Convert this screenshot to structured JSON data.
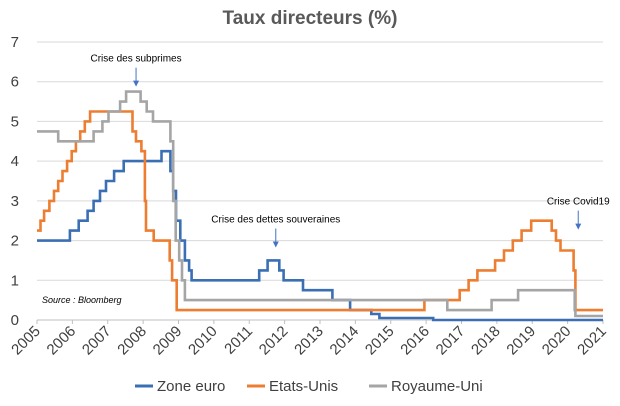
{
  "chart_data": {
    "type": "line",
    "title": "Taux directeurs (%)",
    "source": "Source : Bloomberg",
    "xlabel": "",
    "ylabel": "",
    "xlim": [
      2005,
      2021
    ],
    "ylim": [
      0,
      7
    ],
    "x_ticks": [
      "2005",
      "2006",
      "2007",
      "2008",
      "2009",
      "2010",
      "2011",
      "2012",
      "2013",
      "2014",
      "2015",
      "2016",
      "2017",
      "2018",
      "2019",
      "2020",
      "2021"
    ],
    "y_ticks": [
      "0",
      "1",
      "2",
      "3",
      "4",
      "5",
      "6",
      "7"
    ],
    "grid": true,
    "legend_position": "bottom",
    "annotations": [
      {
        "text": "Crise des subprimes",
        "x": 2007.8,
        "y": 5.8
      },
      {
        "text": "Crise des dettes souveraines",
        "x": 2011.75,
        "y": 1.75
      },
      {
        "text": "Crise Covid19",
        "x": 2020.3,
        "y": 2.2
      }
    ],
    "series": [
      {
        "name": "Zone euro",
        "color": "#3B6FB4",
        "step": true,
        "points": [
          [
            2005.0,
            2.0
          ],
          [
            2005.93,
            2.25
          ],
          [
            2006.18,
            2.5
          ],
          [
            2006.43,
            2.75
          ],
          [
            2006.6,
            3.0
          ],
          [
            2006.78,
            3.25
          ],
          [
            2006.95,
            3.5
          ],
          [
            2007.18,
            3.75
          ],
          [
            2007.45,
            4.0
          ],
          [
            2008.52,
            4.25
          ],
          [
            2008.77,
            3.75
          ],
          [
            2008.85,
            3.25
          ],
          [
            2008.93,
            2.5
          ],
          [
            2009.05,
            2.0
          ],
          [
            2009.18,
            1.5
          ],
          [
            2009.3,
            1.25
          ],
          [
            2009.37,
            1.0
          ],
          [
            2011.28,
            1.25
          ],
          [
            2011.52,
            1.5
          ],
          [
            2011.85,
            1.25
          ],
          [
            2011.97,
            1.0
          ],
          [
            2012.52,
            0.75
          ],
          [
            2013.35,
            0.5
          ],
          [
            2013.85,
            0.25
          ],
          [
            2014.45,
            0.15
          ],
          [
            2014.68,
            0.05
          ],
          [
            2016.2,
            0.0
          ],
          [
            2021.0,
            0.0
          ]
        ]
      },
      {
        "name": "Etats-Unis",
        "color": "#ED7D31",
        "step": true,
        "points": [
          [
            2005.0,
            2.25
          ],
          [
            2005.1,
            2.5
          ],
          [
            2005.2,
            2.75
          ],
          [
            2005.35,
            3.0
          ],
          [
            2005.48,
            3.25
          ],
          [
            2005.6,
            3.5
          ],
          [
            2005.72,
            3.75
          ],
          [
            2005.85,
            4.0
          ],
          [
            2005.98,
            4.25
          ],
          [
            2006.1,
            4.5
          ],
          [
            2006.22,
            4.75
          ],
          [
            2006.35,
            5.0
          ],
          [
            2006.5,
            5.25
          ],
          [
            2007.7,
            4.75
          ],
          [
            2007.8,
            4.5
          ],
          [
            2007.95,
            4.25
          ],
          [
            2008.05,
            3.0
          ],
          [
            2008.08,
            2.25
          ],
          [
            2008.3,
            2.0
          ],
          [
            2008.75,
            1.5
          ],
          [
            2008.82,
            1.0
          ],
          [
            2008.95,
            0.25
          ],
          [
            2015.95,
            0.5
          ],
          [
            2016.95,
            0.75
          ],
          [
            2017.2,
            1.0
          ],
          [
            2017.45,
            1.25
          ],
          [
            2017.95,
            1.5
          ],
          [
            2018.2,
            1.75
          ],
          [
            2018.45,
            2.0
          ],
          [
            2018.7,
            2.25
          ],
          [
            2018.97,
            2.5
          ],
          [
            2019.55,
            2.25
          ],
          [
            2019.67,
            2.0
          ],
          [
            2019.8,
            1.75
          ],
          [
            2020.17,
            1.25
          ],
          [
            2020.22,
            0.25
          ],
          [
            2021.0,
            0.25
          ]
        ]
      },
      {
        "name": "Royaume-Uni",
        "color": "#A5A5A5",
        "step": true,
        "points": [
          [
            2005.0,
            4.75
          ],
          [
            2005.6,
            4.5
          ],
          [
            2006.6,
            4.75
          ],
          [
            2006.85,
            5.0
          ],
          [
            2007.02,
            5.25
          ],
          [
            2007.35,
            5.5
          ],
          [
            2007.52,
            5.75
          ],
          [
            2007.93,
            5.5
          ],
          [
            2008.1,
            5.25
          ],
          [
            2008.28,
            5.0
          ],
          [
            2008.77,
            4.5
          ],
          [
            2008.85,
            3.0
          ],
          [
            2008.92,
            2.0
          ],
          [
            2009.02,
            1.5
          ],
          [
            2009.1,
            1.0
          ],
          [
            2009.18,
            0.5
          ],
          [
            2016.6,
            0.25
          ],
          [
            2017.85,
            0.5
          ],
          [
            2018.6,
            0.75
          ],
          [
            2020.2,
            0.25
          ],
          [
            2020.22,
            0.1
          ],
          [
            2021.0,
            0.1
          ]
        ]
      }
    ]
  }
}
